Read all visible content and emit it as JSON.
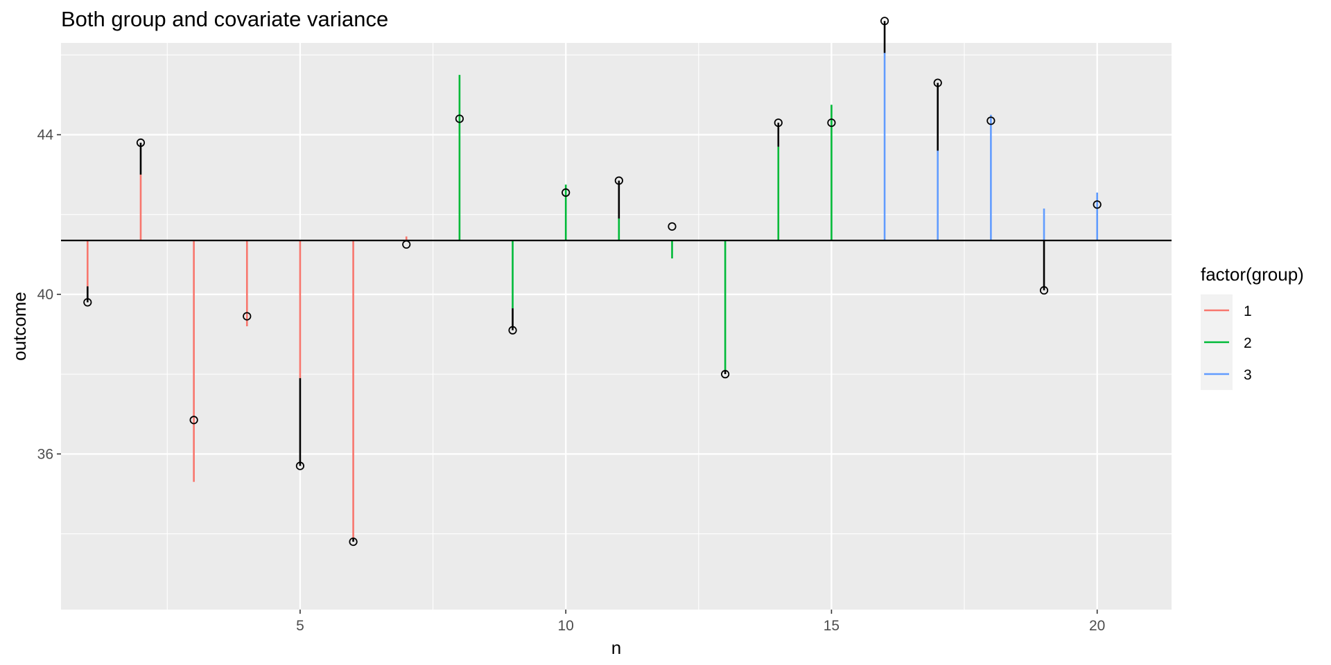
{
  "chart_data": {
    "type": "line",
    "title": "Both group and covariate variance",
    "xlabel": "n",
    "ylabel": "outcome",
    "xlim": [
      0.5,
      21.4
    ],
    "ylim": [
      32.1,
      46.3
    ],
    "x_ticks": [
      5,
      10,
      15,
      20
    ],
    "y_ticks": [
      36,
      40,
      44
    ],
    "grand_mean": 41.35,
    "legend": {
      "title": "factor(group)",
      "position": "right",
      "entries": [
        {
          "label": "1",
          "color": "#F8766D"
        },
        {
          "label": "2",
          "color": "#00BA38"
        },
        {
          "label": "3",
          "color": "#619CFF"
        }
      ]
    },
    "series": [
      {
        "name": "1",
        "color": "#F8766D",
        "points": [
          {
            "n": 1,
            "outcome": 39.8,
            "predicted": 40.2
          },
          {
            "n": 2,
            "outcome": 43.8,
            "predicted": 43.0
          },
          {
            "n": 3,
            "outcome": 36.85,
            "predicted": 35.3
          },
          {
            "n": 4,
            "outcome": 39.45,
            "predicted": 39.2
          },
          {
            "n": 5,
            "outcome": 35.7,
            "predicted": 37.9
          },
          {
            "n": 6,
            "outcome": 33.8,
            "predicted": 33.9
          },
          {
            "n": 7,
            "outcome": 41.25,
            "predicted": 41.45
          }
        ]
      },
      {
        "name": "2",
        "color": "#00BA38",
        "points": [
          {
            "n": 8,
            "outcome": 44.4,
            "predicted": 45.5
          },
          {
            "n": 9,
            "outcome": 39.1,
            "predicted": 39.65
          },
          {
            "n": 10,
            "outcome": 42.55,
            "predicted": 42.75
          },
          {
            "n": 11,
            "outcome": 42.85,
            "predicted": 41.9
          },
          {
            "n": 12,
            "outcome": 41.7,
            "predicted": 40.9
          },
          {
            "n": 13,
            "outcome": 38.0,
            "predicted": 38.1
          },
          {
            "n": 14,
            "outcome": 44.3,
            "predicted": 43.7
          },
          {
            "n": 15,
            "outcome": 44.3,
            "predicted": 44.75
          }
        ]
      },
      {
        "name": "3",
        "color": "#619CFF",
        "points": [
          {
            "n": 16,
            "outcome": 46.85,
            "predicted": 46.05
          },
          {
            "n": 17,
            "outcome": 45.3,
            "predicted": 43.6
          },
          {
            "n": 18,
            "outcome": 44.35,
            "predicted": 44.5
          },
          {
            "n": 19,
            "outcome": 40.1,
            "predicted": 42.15
          },
          {
            "n": 20,
            "outcome": 42.25,
            "predicted": 42.55
          }
        ]
      }
    ]
  }
}
